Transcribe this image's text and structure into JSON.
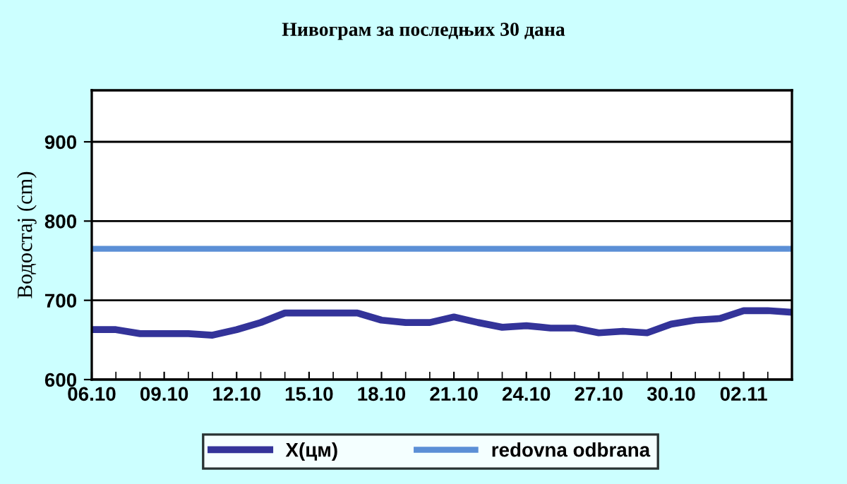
{
  "chart_data": {
    "type": "line",
    "title": "Нивограм за последњих 30 дана",
    "ylabel": "Водостај (cm)",
    "categories": [
      "06.10",
      null,
      null,
      "09.10",
      null,
      null,
      "12.10",
      null,
      null,
      "15.10",
      null,
      null,
      "18.10",
      null,
      null,
      "21.10",
      null,
      null,
      "24.10",
      null,
      null,
      "27.10",
      null,
      null,
      "30.10",
      null,
      null,
      "02.11",
      null,
      null
    ],
    "series": [
      {
        "name": "X(цм)",
        "color": "#333399",
        "values": [
          663,
          663,
          658,
          658,
          658,
          656,
          663,
          672,
          684,
          684,
          684,
          684,
          675,
          672,
          672,
          679,
          672,
          666,
          668,
          665,
          665,
          659,
          661,
          659,
          670,
          675,
          677,
          687,
          687,
          685
        ]
      }
    ],
    "ref_lines": [
      {
        "axis": "y",
        "value": 765,
        "label": "redovna odbrana",
        "color": "#5b8fd6"
      }
    ],
    "ylim": [
      600,
      965
    ],
    "yticks": [
      600,
      700,
      800,
      900
    ],
    "grid": "y",
    "legend": "bottom",
    "marker": "none",
    "line_style": "solid"
  }
}
